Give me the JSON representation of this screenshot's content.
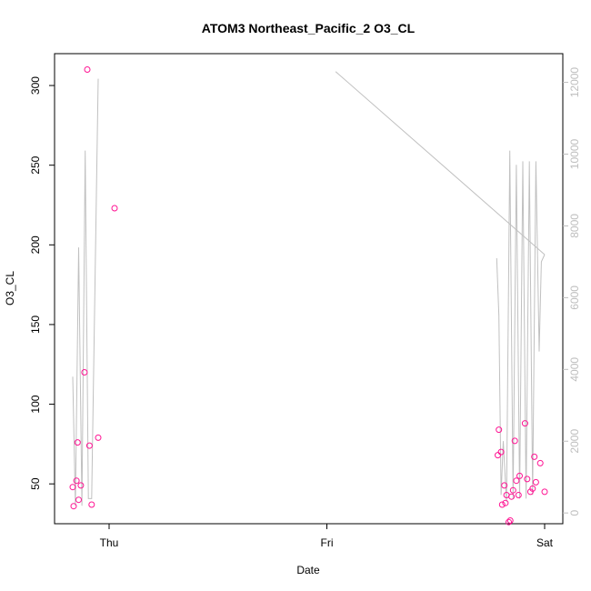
{
  "chart_data": {
    "type": "scatter",
    "title": "ATOM3 Northeast_Pacific_2 O3_CL",
    "xlabel": "Date",
    "ylabel": "O3_CL",
    "x_ticks": [
      "Thu",
      "Fri",
      "Sat"
    ],
    "x_range_days": [
      -0.17,
      2.03
    ],
    "ylim": [
      25,
      320
    ],
    "y_ticks": [
      50,
      100,
      150,
      200,
      250,
      300
    ],
    "y2_ticks": [
      0,
      2000,
      4000,
      6000,
      8000,
      10000,
      12000
    ],
    "y2_range": [
      -300,
      12800
    ],
    "grid": false,
    "colors": {
      "points": "#ff1493",
      "line": "#c0c0c0",
      "axis": "#000000",
      "right_axis": "#bebebe"
    },
    "series": [
      {
        "type": "points",
        "axis": "left",
        "x": [
          -0.167,
          -0.163,
          -0.15,
          -0.145,
          -0.14,
          -0.13,
          -0.113,
          -0.1,
          -0.09,
          -0.08,
          -0.05,
          0.025,
          1.785,
          1.79,
          1.8,
          1.805,
          1.815,
          1.82,
          1.825,
          1.835,
          1.842,
          1.848,
          1.855,
          1.863,
          1.87,
          1.88,
          1.885,
          1.91,
          1.92,
          1.935,
          1.945,
          1.953,
          1.96,
          1.98,
          2.0
        ],
        "y": [
          48,
          36,
          52,
          76,
          40,
          49,
          120,
          310,
          74,
          37,
          79,
          223,
          68,
          84,
          70,
          37,
          49,
          38,
          43,
          26,
          27,
          42,
          46,
          77,
          52,
          43,
          55,
          88,
          53,
          45,
          47,
          67,
          51,
          63,
          45
        ]
      },
      {
        "type": "line",
        "axis": "right",
        "x": [
          -0.167,
          -0.155,
          -0.14,
          -0.125,
          -0.11,
          -0.095,
          -0.08,
          -0.05,
          1.78,
          1.79,
          1.8,
          1.81,
          1.825,
          1.84,
          1.855,
          1.87,
          1.885,
          1.9,
          1.915,
          1.93,
          1.945,
          1.96,
          1.975,
          1.985,
          2.0
        ],
        "y": [
          3800,
          200,
          7400,
          200,
          10100,
          400,
          400,
          12100,
          7100,
          5500,
          500,
          2000,
          300,
          10100,
          400,
          9700,
          400,
          9800,
          400,
          9800,
          500,
          9800,
          4500,
          7000,
          7200
        ],
        "segments_break_after": [
          7
        ]
      },
      {
        "type": "line",
        "axis": "right",
        "x": [
          1.04,
          2.0
        ],
        "y": [
          12300,
          7200
        ]
      }
    ]
  }
}
